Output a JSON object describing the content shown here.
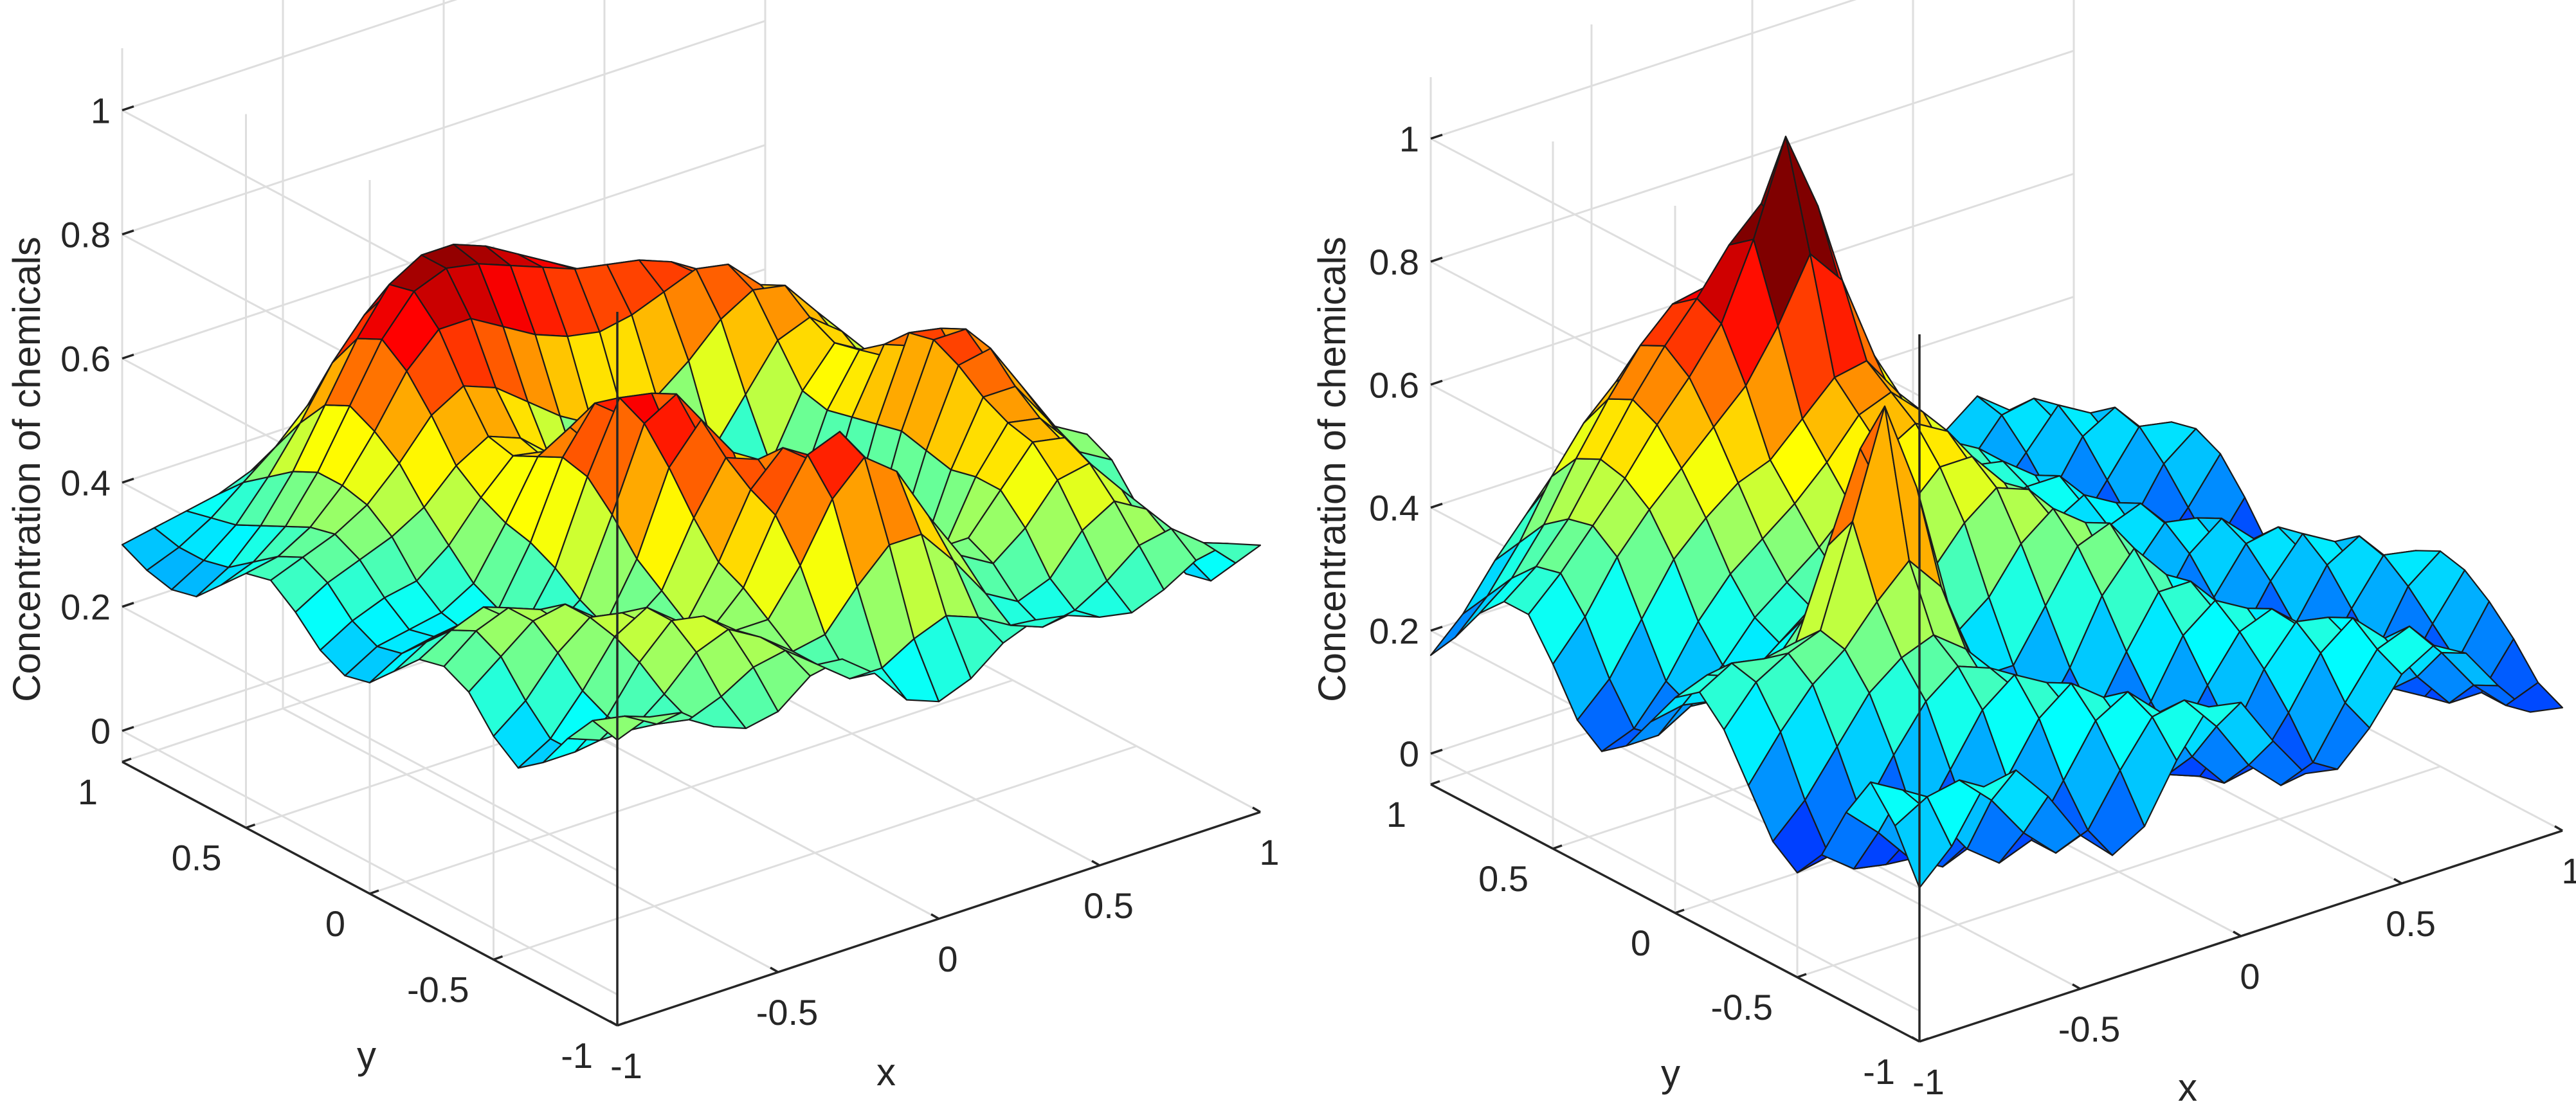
{
  "figure": {
    "panels": 2
  },
  "chart_data": [
    {
      "type": "surface",
      "panel": "left",
      "zlabel": "Concentration of chemicals",
      "xlabel": "x",
      "ylabel": "y",
      "xlim": [
        -1,
        1
      ],
      "ylim": [
        -1,
        1
      ],
      "zlim": [
        -0.05,
        1.1
      ],
      "xticks": [
        "-1",
        "-0.5",
        "0",
        "0.5",
        "1"
      ],
      "yticks": [
        "-1",
        "-0.5",
        "0",
        "0.5",
        "1"
      ],
      "zticks": [
        "0",
        "0.2",
        "0.4",
        "0.6",
        "0.8",
        "1"
      ],
      "colormap": "jet",
      "clim": [
        0.1,
        0.72
      ],
      "grid": true,
      "mesh_size": 21,
      "x": [
        -1,
        -0.9,
        -0.8,
        -0.7,
        -0.6,
        -0.5,
        -0.4,
        -0.3,
        -0.2,
        -0.1,
        0,
        0.1,
        0.2,
        0.3,
        0.4,
        0.5,
        0.6,
        0.7,
        0.8,
        0.9,
        1
      ],
      "y": [
        -1,
        -0.9,
        -0.8,
        -0.7,
        -0.6,
        -0.5,
        -0.4,
        -0.3,
        -0.2,
        -0.1,
        0,
        0.1,
        0.2,
        0.3,
        0.4,
        0.5,
        0.6,
        0.7,
        0.8,
        0.9,
        1
      ],
      "z": [
        [
          0.41,
          0.43,
          0.42,
          0.38,
          0.36,
          0.37,
          0.41,
          0.42,
          0.38,
          0.32,
          0.3,
          0.32,
          0.36,
          0.38,
          0.37,
          0.35,
          0.34,
          0.36,
          0.39,
          0.4,
          0.38
        ],
        [
          0.42,
          0.41,
          0.38,
          0.37,
          0.39,
          0.42,
          0.43,
          0.39,
          0.35,
          0.35,
          0.38,
          0.4,
          0.38,
          0.35,
          0.33,
          0.34,
          0.37,
          0.41,
          0.42,
          0.38,
          0.33
        ],
        [
          0.37,
          0.35,
          0.35,
          0.39,
          0.44,
          0.46,
          0.43,
          0.39,
          0.4,
          0.46,
          0.51,
          0.51,
          0.45,
          0.38,
          0.35,
          0.37,
          0.43,
          0.46,
          0.43,
          0.35,
          0.28
        ],
        [
          0.31,
          0.31,
          0.35,
          0.42,
          0.47,
          0.46,
          0.42,
          0.42,
          0.49,
          0.58,
          0.63,
          0.59,
          0.5,
          0.42,
          0.39,
          0.43,
          0.49,
          0.5,
          0.44,
          0.34,
          0.27
        ],
        [
          0.28,
          0.31,
          0.37,
          0.44,
          0.47,
          0.43,
          0.4,
          0.45,
          0.55,
          0.63,
          0.65,
          0.58,
          0.48,
          0.41,
          0.41,
          0.47,
          0.53,
          0.52,
          0.45,
          0.35,
          0.3
        ],
        [
          0.31,
          0.35,
          0.41,
          0.45,
          0.44,
          0.4,
          0.39,
          0.47,
          0.57,
          0.62,
          0.58,
          0.47,
          0.37,
          0.33,
          0.37,
          0.47,
          0.54,
          0.53,
          0.46,
          0.38,
          0.34
        ],
        [
          0.36,
          0.4,
          0.44,
          0.45,
          0.41,
          0.38,
          0.42,
          0.52,
          0.6,
          0.58,
          0.49,
          0.36,
          0.27,
          0.25,
          0.33,
          0.46,
          0.56,
          0.56,
          0.49,
          0.42,
          0.39
        ],
        [
          0.38,
          0.42,
          0.44,
          0.42,
          0.37,
          0.36,
          0.45,
          0.58,
          0.64,
          0.57,
          0.42,
          0.28,
          0.21,
          0.22,
          0.32,
          0.47,
          0.59,
          0.6,
          0.52,
          0.44,
          0.41
        ],
        [
          0.37,
          0.4,
          0.42,
          0.38,
          0.34,
          0.38,
          0.5,
          0.63,
          0.66,
          0.55,
          0.38,
          0.24,
          0.18,
          0.2,
          0.31,
          0.48,
          0.61,
          0.61,
          0.52,
          0.42,
          0.38
        ],
        [
          0.33,
          0.36,
          0.37,
          0.34,
          0.33,
          0.41,
          0.54,
          0.65,
          0.64,
          0.5,
          0.33,
          0.2,
          0.15,
          0.18,
          0.3,
          0.47,
          0.6,
          0.59,
          0.48,
          0.37,
          0.33
        ],
        [
          0.29,
          0.32,
          0.33,
          0.32,
          0.34,
          0.43,
          0.55,
          0.62,
          0.58,
          0.44,
          0.28,
          0.17,
          0.14,
          0.18,
          0.3,
          0.46,
          0.56,
          0.54,
          0.43,
          0.33,
          0.29
        ],
        [
          0.28,
          0.31,
          0.32,
          0.33,
          0.36,
          0.44,
          0.53,
          0.56,
          0.5,
          0.37,
          0.24,
          0.16,
          0.15,
          0.21,
          0.32,
          0.45,
          0.53,
          0.5,
          0.4,
          0.31,
          0.28
        ],
        [
          0.3,
          0.33,
          0.35,
          0.36,
          0.4,
          0.46,
          0.51,
          0.5,
          0.43,
          0.33,
          0.25,
          0.21,
          0.22,
          0.27,
          0.36,
          0.46,
          0.52,
          0.49,
          0.41,
          0.33,
          0.3
        ],
        [
          0.34,
          0.37,
          0.39,
          0.41,
          0.44,
          0.49,
          0.52,
          0.5,
          0.44,
          0.38,
          0.33,
          0.31,
          0.33,
          0.38,
          0.45,
          0.52,
          0.54,
          0.5,
          0.42,
          0.35,
          0.32
        ],
        [
          0.37,
          0.39,
          0.41,
          0.44,
          0.49,
          0.55,
          0.58,
          0.56,
          0.52,
          0.48,
          0.45,
          0.44,
          0.46,
          0.5,
          0.55,
          0.58,
          0.57,
          0.51,
          0.43,
          0.36,
          0.32
        ],
        [
          0.36,
          0.37,
          0.4,
          0.45,
          0.52,
          0.6,
          0.65,
          0.65,
          0.62,
          0.59,
          0.57,
          0.56,
          0.57,
          0.59,
          0.61,
          0.6,
          0.55,
          0.48,
          0.4,
          0.34,
          0.3
        ],
        [
          0.32,
          0.34,
          0.38,
          0.45,
          0.54,
          0.63,
          0.69,
          0.71,
          0.7,
          0.68,
          0.66,
          0.64,
          0.63,
          0.62,
          0.6,
          0.56,
          0.5,
          0.43,
          0.36,
          0.31,
          0.27
        ],
        [
          0.28,
          0.31,
          0.36,
          0.43,
          0.52,
          0.61,
          0.68,
          0.71,
          0.71,
          0.69,
          0.66,
          0.63,
          0.6,
          0.57,
          0.53,
          0.48,
          0.42,
          0.36,
          0.31,
          0.27,
          0.24
        ],
        [
          0.27,
          0.3,
          0.34,
          0.4,
          0.47,
          0.55,
          0.61,
          0.64,
          0.64,
          0.62,
          0.58,
          0.54,
          0.5,
          0.46,
          0.42,
          0.38,
          0.34,
          0.3,
          0.27,
          0.25,
          0.24
        ],
        [
          0.28,
          0.3,
          0.33,
          0.37,
          0.41,
          0.46,
          0.5,
          0.52,
          0.52,
          0.5,
          0.46,
          0.42,
          0.39,
          0.35,
          0.32,
          0.3,
          0.28,
          0.27,
          0.26,
          0.26,
          0.26
        ],
        [
          0.3,
          0.31,
          0.32,
          0.33,
          0.35,
          0.37,
          0.39,
          0.4,
          0.39,
          0.37,
          0.34,
          0.31,
          0.29,
          0.27,
          0.26,
          0.25,
          0.25,
          0.26,
          0.27,
          0.28,
          0.29
        ]
      ]
    },
    {
      "type": "surface",
      "panel": "right",
      "zlabel": "Concentration of chemicals",
      "xlabel": "x",
      "ylabel": "y",
      "xlim": [
        -1,
        1
      ],
      "ylim": [
        -1,
        1
      ],
      "zlim": [
        -0.05,
        1.1
      ],
      "xticks": [
        "-1",
        "-0.5",
        "0",
        "0.5",
        "1"
      ],
      "yticks": [
        "-1",
        "-0.5",
        "0",
        "0.5",
        "1"
      ],
      "zticks": [
        "0",
        "0.2",
        "0.4",
        "0.6",
        "0.8",
        "1"
      ],
      "colormap": "jet",
      "clim": [
        0.0,
        0.8
      ],
      "grid": true,
      "mesh_size": 21,
      "x": [
        -1,
        -0.9,
        -0.8,
        -0.7,
        -0.6,
        -0.5,
        -0.4,
        -0.3,
        -0.2,
        -0.1,
        0,
        0.1,
        0.2,
        0.3,
        0.4,
        0.5,
        0.6,
        0.7,
        0.8,
        0.9,
        1
      ],
      "y": [
        -1,
        -0.9,
        -0.8,
        -0.7,
        -0.6,
        -0.5,
        -0.4,
        -0.3,
        -0.2,
        -0.1,
        0,
        0.1,
        0.2,
        0.3,
        0.4,
        0.5,
        0.6,
        0.7,
        0.8,
        0.9,
        1
      ],
      "z": [
        [
          0.2,
          0.25,
          0.33,
          0.34,
          0.28,
          0.2,
          0.15,
          0.18,
          0.27,
          0.34,
          0.33,
          0.25,
          0.18,
          0.17,
          0.22,
          0.29,
          0.32,
          0.29,
          0.22,
          0.16,
          0.15
        ],
        [
          0.28,
          0.31,
          0.32,
          0.27,
          0.2,
          0.15,
          0.17,
          0.25,
          0.32,
          0.33,
          0.27,
          0.19,
          0.14,
          0.16,
          0.24,
          0.31,
          0.33,
          0.27,
          0.2,
          0.15,
          0.17
        ],
        [
          0.33,
          0.3,
          0.24,
          0.17,
          0.13,
          0.15,
          0.23,
          0.31,
          0.34,
          0.29,
          0.2,
          0.14,
          0.15,
          0.22,
          0.3,
          0.34,
          0.29,
          0.21,
          0.15,
          0.15,
          0.22
        ],
        [
          0.26,
          0.21,
          0.15,
          0.12,
          0.15,
          0.23,
          0.31,
          0.35,
          0.31,
          0.22,
          0.15,
          0.13,
          0.18,
          0.27,
          0.33,
          0.32,
          0.25,
          0.17,
          0.14,
          0.18,
          0.26
        ],
        [
          0.17,
          0.13,
          0.12,
          0.16,
          0.24,
          0.32,
          0.36,
          0.33,
          0.25,
          0.17,
          0.13,
          0.16,
          0.24,
          0.31,
          0.33,
          0.28,
          0.19,
          0.13,
          0.14,
          0.22,
          0.29
        ],
        [
          0.12,
          0.13,
          0.18,
          0.26,
          0.33,
          0.37,
          0.35,
          0.29,
          0.2,
          0.14,
          0.14,
          0.21,
          0.3,
          0.34,
          0.31,
          0.22,
          0.14,
          0.12,
          0.17,
          0.26,
          0.3
        ],
        [
          0.15,
          0.2,
          0.27,
          0.34,
          0.38,
          0.4,
          0.36,
          0.26,
          0.17,
          0.14,
          0.18,
          0.27,
          0.35,
          0.35,
          0.27,
          0.17,
          0.12,
          0.14,
          0.22,
          0.29,
          0.28
        ],
        [
          0.22,
          0.29,
          0.35,
          0.39,
          0.45,
          0.5,
          0.44,
          0.3,
          0.19,
          0.16,
          0.24,
          0.34,
          0.4,
          0.34,
          0.22,
          0.13,
          0.12,
          0.19,
          0.27,
          0.3,
          0.24
        ],
        [
          0.29,
          0.35,
          0.38,
          0.4,
          0.56,
          0.73,
          0.58,
          0.37,
          0.24,
          0.24,
          0.32,
          0.4,
          0.42,
          0.32,
          0.19,
          0.12,
          0.16,
          0.24,
          0.3,
          0.27,
          0.19
        ],
        [
          0.33,
          0.36,
          0.35,
          0.36,
          0.5,
          0.64,
          0.52,
          0.36,
          0.29,
          0.33,
          0.4,
          0.44,
          0.4,
          0.28,
          0.17,
          0.14,
          0.21,
          0.28,
          0.29,
          0.22,
          0.14
        ],
        [
          0.3,
          0.32,
          0.3,
          0.3,
          0.36,
          0.42,
          0.39,
          0.35,
          0.37,
          0.43,
          0.47,
          0.45,
          0.37,
          0.25,
          0.17,
          0.18,
          0.26,
          0.3,
          0.25,
          0.17,
          0.12
        ],
        [
          0.24,
          0.25,
          0.24,
          0.26,
          0.3,
          0.34,
          0.36,
          0.39,
          0.45,
          0.5,
          0.5,
          0.44,
          0.34,
          0.24,
          0.19,
          0.23,
          0.29,
          0.28,
          0.2,
          0.13,
          0.12
        ],
        [
          0.18,
          0.18,
          0.21,
          0.26,
          0.32,
          0.36,
          0.4,
          0.45,
          0.52,
          0.55,
          0.52,
          0.43,
          0.32,
          0.25,
          0.23,
          0.28,
          0.3,
          0.24,
          0.15,
          0.12,
          0.16
        ],
        [
          0.15,
          0.17,
          0.23,
          0.31,
          0.37,
          0.41,
          0.45,
          0.5,
          0.56,
          0.58,
          0.53,
          0.42,
          0.32,
          0.27,
          0.28,
          0.31,
          0.28,
          0.19,
          0.13,
          0.15,
          0.22
        ],
        [
          0.18,
          0.23,
          0.31,
          0.39,
          0.44,
          0.48,
          0.5,
          0.55,
          0.6,
          0.61,
          0.54,
          0.43,
          0.34,
          0.31,
          0.32,
          0.32,
          0.24,
          0.15,
          0.14,
          0.2,
          0.27
        ],
        [
          0.25,
          0.31,
          0.39,
          0.45,
          0.5,
          0.55,
          0.6,
          0.68,
          0.78,
          0.72,
          0.58,
          0.45,
          0.37,
          0.35,
          0.34,
          0.3,
          0.2,
          0.14,
          0.17,
          0.25,
          0.29
        ],
        [
          0.31,
          0.36,
          0.42,
          0.48,
          0.55,
          0.61,
          0.68,
          0.8,
          0.95,
          0.82,
          0.62,
          0.48,
          0.4,
          0.37,
          0.34,
          0.26,
          0.17,
          0.15,
          0.22,
          0.29,
          0.28
        ],
        [
          0.31,
          0.35,
          0.41,
          0.49,
          0.57,
          0.64,
          0.7,
          0.77,
          0.82,
          0.74,
          0.59,
          0.48,
          0.42,
          0.38,
          0.32,
          0.22,
          0.16,
          0.19,
          0.27,
          0.3,
          0.24
        ],
        [
          0.27,
          0.31,
          0.38,
          0.47,
          0.55,
          0.62,
          0.67,
          0.68,
          0.66,
          0.59,
          0.51,
          0.45,
          0.41,
          0.36,
          0.27,
          0.19,
          0.18,
          0.24,
          0.3,
          0.27,
          0.19
        ],
        [
          0.21,
          0.26,
          0.33,
          0.42,
          0.49,
          0.54,
          0.55,
          0.53,
          0.49,
          0.44,
          0.41,
          0.39,
          0.36,
          0.3,
          0.22,
          0.18,
          0.22,
          0.28,
          0.29,
          0.22,
          0.15
        ],
        [
          0.16,
          0.21,
          0.28,
          0.34,
          0.39,
          0.41,
          0.4,
          0.37,
          0.33,
          0.31,
          0.31,
          0.31,
          0.29,
          0.24,
          0.19,
          0.19,
          0.25,
          0.29,
          0.25,
          0.18,
          0.13
        ]
      ]
    }
  ]
}
